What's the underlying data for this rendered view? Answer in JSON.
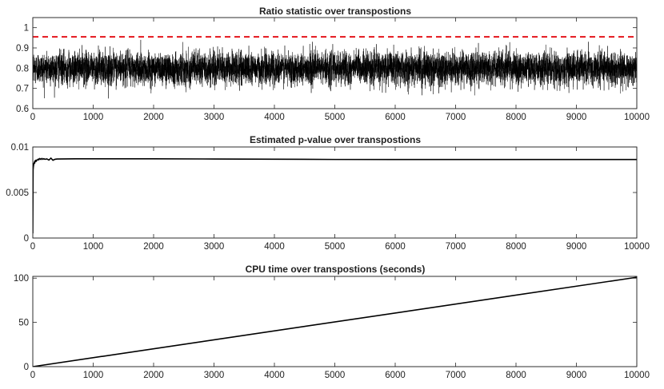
{
  "chart_data": [
    {
      "type": "line",
      "title": "Ratio statistic over transpostions",
      "xlim": [
        0,
        10000
      ],
      "ylim": [
        0.6,
        1.05
      ],
      "xticks": [
        0,
        1000,
        2000,
        3000,
        4000,
        5000,
        6000,
        7000,
        8000,
        9000,
        10000
      ],
      "yticks": [
        0.6,
        0.7,
        0.8,
        0.9,
        1
      ],
      "ytick_labels": [
        "0.6",
        "0.7",
        "0.8",
        "0.9",
        "1"
      ],
      "series": [
        {
          "color": "#000000",
          "style": "noisy trace",
          "mean": 0.8,
          "noise_std": 0.045,
          "min": 0.65,
          "max": 0.99,
          "n_points": 10000
        }
      ],
      "reference_line": {
        "y": 0.955,
        "color": "#e4141b",
        "style": "dashed"
      }
    },
    {
      "type": "line",
      "title": "Estimated p-value over transpostions",
      "xlim": [
        0,
        10000
      ],
      "ylim": [
        0,
        0.01
      ],
      "xticks": [
        0,
        1000,
        2000,
        3000,
        4000,
        5000,
        6000,
        7000,
        8000,
        9000,
        10000
      ],
      "yticks": [
        0,
        0.005,
        0.01
      ],
      "ytick_labels": [
        "0",
        "0.005",
        "0.01"
      ],
      "series": [
        {
          "color": "#000000",
          "x": [
            0,
            5,
            10,
            20,
            40,
            60,
            100,
            200,
            400,
            700,
            1000,
            2000,
            3000,
            4000,
            5000,
            6000,
            7000,
            8000,
            9000,
            10000
          ],
          "y": [
            0.0005,
            0.0075,
            0.0079,
            0.0082,
            0.0084,
            0.0085,
            0.0086,
            0.00865,
            0.00868,
            0.0087,
            0.0087,
            0.0087,
            0.00868,
            0.00866,
            0.00863,
            0.00862,
            0.00862,
            0.00862,
            0.00862,
            0.00862
          ]
        }
      ]
    },
    {
      "type": "line",
      "title": "CPU time over transpostions (seconds)",
      "xlim": [
        0,
        10000
      ],
      "ylim": [
        0,
        102
      ],
      "xticks": [
        0,
        1000,
        2000,
        3000,
        4000,
        5000,
        6000,
        7000,
        8000,
        9000,
        10000
      ],
      "yticks": [
        0,
        50,
        100
      ],
      "ytick_labels": [
        "0",
        "50",
        "100"
      ],
      "series": [
        {
          "color": "#000000",
          "x": [
            0,
            10000
          ],
          "y": [
            0,
            101
          ]
        }
      ]
    }
  ]
}
